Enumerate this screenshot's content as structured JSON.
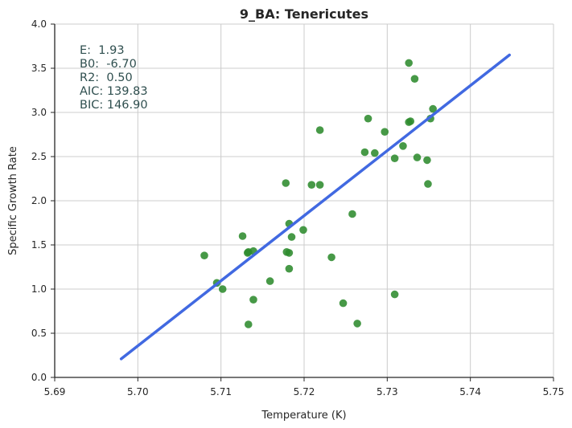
{
  "chart_data": {
    "type": "scatter",
    "title": "9_BA: Tenericutes",
    "xlabel": "Temperature (K)",
    "ylabel": "Specific Growth Rate",
    "xlim": [
      5.69,
      5.75
    ],
    "ylim": [
      0.0,
      4.0
    ],
    "xticks": [
      5.69,
      5.7,
      5.71,
      5.72,
      5.73,
      5.74,
      5.75
    ],
    "xtick_labels": [
      "5.69",
      "5.70",
      "5.71",
      "5.72",
      "5.73",
      "5.74",
      "5.75"
    ],
    "yticks": [
      0.0,
      0.5,
      1.0,
      1.5,
      2.0,
      2.5,
      3.0,
      3.5,
      4.0
    ],
    "ytick_labels": [
      "0.0",
      "0.5",
      "1.0",
      "1.5",
      "2.0",
      "2.5",
      "3.0",
      "3.5",
      "4.0"
    ],
    "grid": true,
    "point_color": "#2e8b2e",
    "line_color": "#4169e1",
    "stats_color": "#2f4f4f",
    "stats": [
      "E:  1.93",
      "B0:  -6.70",
      "R2:  0.50",
      "AIC: 139.83",
      "BIC: 146.90"
    ],
    "series": [
      {
        "type": "scatter",
        "points": [
          [
            5.708,
            1.38
          ],
          [
            5.7095,
            1.07
          ],
          [
            5.7102,
            1.0
          ],
          [
            5.7126,
            1.6
          ],
          [
            5.7132,
            1.41
          ],
          [
            5.7133,
            1.42
          ],
          [
            5.7133,
            0.6
          ],
          [
            5.7139,
            1.43
          ],
          [
            5.7139,
            0.88
          ],
          [
            5.7159,
            1.09
          ],
          [
            5.7178,
            2.2
          ],
          [
            5.7179,
            1.42
          ],
          [
            5.7182,
            1.41
          ],
          [
            5.7182,
            1.74
          ],
          [
            5.7182,
            1.23
          ],
          [
            5.7185,
            1.59
          ],
          [
            5.7199,
            1.67
          ],
          [
            5.7209,
            2.18
          ],
          [
            5.7219,
            2.8
          ],
          [
            5.7219,
            2.18
          ],
          [
            5.7233,
            1.36
          ],
          [
            5.7247,
            0.84
          ],
          [
            5.7258,
            1.85
          ],
          [
            5.7264,
            0.61
          ],
          [
            5.7273,
            2.55
          ],
          [
            5.7277,
            2.93
          ],
          [
            5.7285,
            2.54
          ],
          [
            5.7297,
            2.78
          ],
          [
            5.7309,
            2.48
          ],
          [
            5.7309,
            0.94
          ],
          [
            5.7319,
            2.62
          ],
          [
            5.7326,
            3.56
          ],
          [
            5.7326,
            2.89
          ],
          [
            5.7328,
            2.9
          ],
          [
            5.7333,
            3.38
          ],
          [
            5.7336,
            2.49
          ],
          [
            5.7348,
            2.46
          ],
          [
            5.7349,
            2.19
          ],
          [
            5.7352,
            2.93
          ],
          [
            5.7355,
            3.04
          ]
        ]
      },
      {
        "type": "line",
        "points": [
          [
            5.698,
            0.21
          ],
          [
            5.7447,
            3.65
          ]
        ]
      }
    ]
  }
}
